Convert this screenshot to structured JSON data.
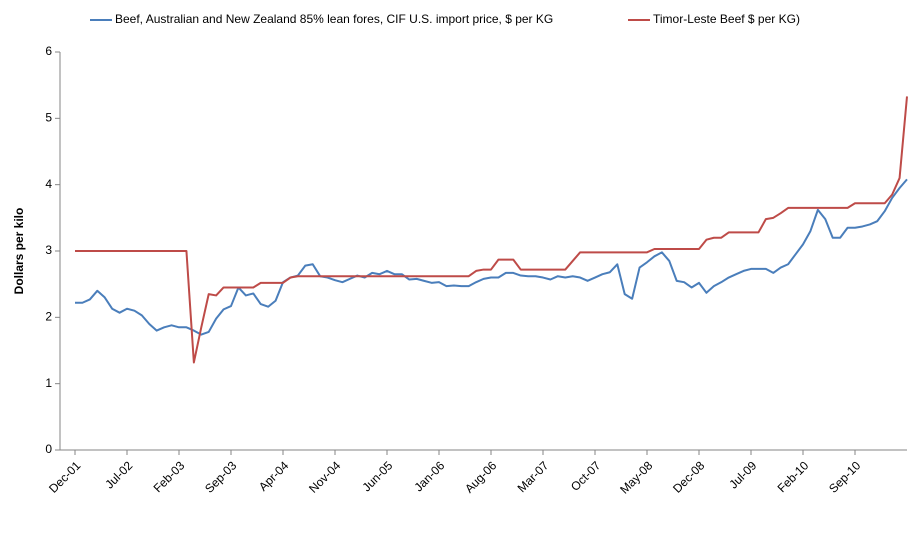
{
  "chart_data": {
    "type": "line",
    "y_label": "Dollars per kilo",
    "categories": [
      "Dec-01",
      null,
      null,
      null,
      null,
      null,
      null,
      "Jul-02",
      null,
      null,
      null,
      null,
      null,
      null,
      "Feb-03",
      null,
      null,
      null,
      null,
      null,
      null,
      "Sep-03",
      null,
      null,
      null,
      null,
      null,
      null,
      "Apr-04",
      null,
      null,
      null,
      null,
      null,
      null,
      "Nov-04",
      null,
      null,
      null,
      null,
      null,
      null,
      "Jun-05",
      null,
      null,
      null,
      null,
      null,
      null,
      "Jan-06",
      null,
      null,
      null,
      null,
      null,
      null,
      "Aug-06",
      null,
      null,
      null,
      null,
      null,
      null,
      "Mar-07",
      null,
      null,
      null,
      null,
      null,
      null,
      "Oct-07",
      null,
      null,
      null,
      null,
      null,
      null,
      "May-08",
      null,
      null,
      null,
      null,
      null,
      null,
      "Dec-08",
      null,
      null,
      null,
      null,
      null,
      null,
      "Jul-09",
      null,
      null,
      null,
      null,
      null,
      null,
      "Feb-10",
      null,
      null,
      null,
      null,
      null,
      null,
      "Sep-10",
      null,
      null,
      null,
      null,
      null,
      null,
      null
    ],
    "series": [
      {
        "name": "Beef, Australian and New Zealand 85% lean fores, CIF U.S. import price, $ per KG",
        "color": "#4a7ebb",
        "values": [
          2.22,
          2.22,
          2.27,
          2.4,
          2.3,
          2.13,
          2.07,
          2.13,
          2.1,
          2.03,
          1.9,
          1.8,
          1.85,
          1.88,
          1.85,
          1.85,
          1.8,
          1.74,
          1.78,
          1.98,
          2.12,
          2.17,
          2.45,
          2.33,
          2.36,
          2.2,
          2.16,
          2.25,
          2.53,
          2.6,
          2.63,
          2.78,
          2.8,
          2.62,
          2.6,
          2.56,
          2.53,
          2.58,
          2.63,
          2.6,
          2.67,
          2.65,
          2.7,
          2.65,
          2.65,
          2.57,
          2.58,
          2.55,
          2.52,
          2.53,
          2.47,
          2.48,
          2.47,
          2.47,
          2.53,
          2.58,
          2.6,
          2.6,
          2.67,
          2.67,
          2.63,
          2.62,
          2.62,
          2.6,
          2.57,
          2.62,
          2.6,
          2.62,
          2.6,
          2.55,
          2.6,
          2.65,
          2.68,
          2.8,
          2.35,
          2.28,
          2.75,
          2.83,
          2.92,
          2.98,
          2.85,
          2.55,
          2.53,
          2.45,
          2.52,
          2.37,
          2.47,
          2.53,
          2.6,
          2.65,
          2.7,
          2.73,
          2.73,
          2.73,
          2.67,
          2.75,
          2.8,
          2.95,
          3.1,
          3.3,
          3.62,
          3.48,
          3.2,
          3.2,
          3.35,
          3.35,
          3.37,
          3.4,
          3.45,
          3.6,
          3.8,
          3.95,
          4.08
        ]
      },
      {
        "name": "Timor-Leste Beef $ per KG)",
        "color": "#be4b48",
        "values": [
          3,
          3,
          3,
          3,
          3,
          3,
          3,
          3,
          3,
          3,
          3,
          3,
          3,
          3,
          3,
          3,
          1.32,
          1.85,
          2.35,
          2.33,
          2.45,
          2.45,
          2.45,
          2.45,
          2.45,
          2.52,
          2.52,
          2.52,
          2.52,
          2.6,
          2.62,
          2.62,
          2.62,
          2.62,
          2.62,
          2.62,
          2.62,
          2.62,
          2.62,
          2.62,
          2.62,
          2.62,
          2.62,
          2.62,
          2.62,
          2.62,
          2.62,
          2.62,
          2.62,
          2.62,
          2.62,
          2.62,
          2.62,
          2.62,
          2.7,
          2.72,
          2.72,
          2.87,
          2.87,
          2.87,
          2.72,
          2.72,
          2.72,
          2.72,
          2.72,
          2.72,
          2.72,
          2.85,
          2.98,
          2.98,
          2.98,
          2.98,
          2.98,
          2.98,
          2.98,
          2.98,
          2.98,
          2.98,
          3.03,
          3.03,
          3.03,
          3.03,
          3.03,
          3.03,
          3.03,
          3.17,
          3.2,
          3.2,
          3.28,
          3.28,
          3.28,
          3.28,
          3.28,
          3.48,
          3.5,
          3.57,
          3.65,
          3.65,
          3.65,
          3.65,
          3.65,
          3.65,
          3.65,
          3.65,
          3.65,
          3.72,
          3.72,
          3.72,
          3.72,
          3.72,
          3.85,
          4.1,
          5.33
        ]
      }
    ],
    "ylim": [
      0,
      6
    ],
    "yticks": [
      0,
      1,
      2,
      3,
      4,
      5,
      6
    ],
    "grid": false,
    "legend": "top"
  }
}
